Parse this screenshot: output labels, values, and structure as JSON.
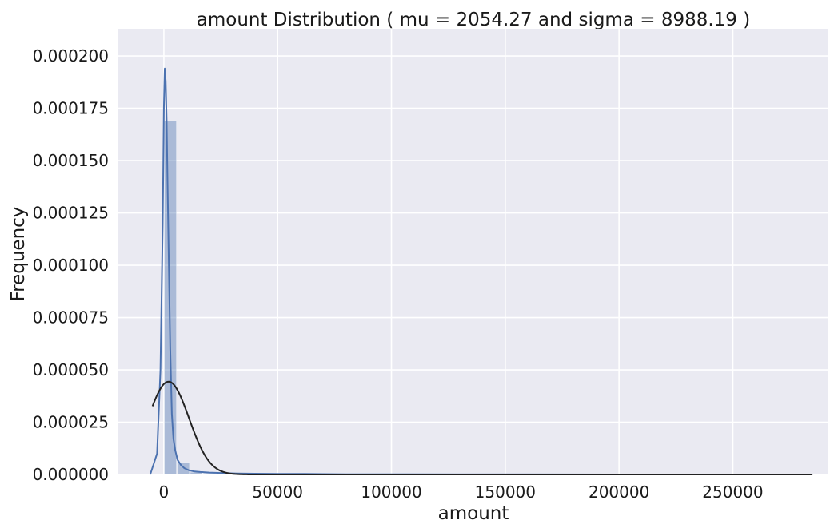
{
  "chart_data": {
    "type": "bar",
    "title": "amount Distribution ( mu = 2054.27 and sigma = 8988.19 )",
    "xlabel": "amount",
    "ylabel": "Frequency",
    "xlim": [
      -20000,
      292000
    ],
    "ylim": [
      0,
      0.000213
    ],
    "x_ticks": [
      0,
      50000,
      100000,
      150000,
      200000,
      250000
    ],
    "x_tick_labels": [
      "0",
      "50000",
      "100000",
      "150000",
      "200000",
      "250000"
    ],
    "y_ticks": [
      0,
      2.5e-05,
      5e-05,
      7.5e-05,
      0.0001,
      0.000125,
      0.00015,
      0.000175,
      0.0002
    ],
    "y_tick_labels": [
      "0.000000",
      "0.000025",
      "0.000050",
      "0.000075",
      "0.000100",
      "0.000125",
      "0.000150",
      "0.000175",
      "0.000200"
    ],
    "grid": true,
    "background": "#eaeaf2",
    "grid_color": "#ffffff",
    "bar_color": "#4c72b0",
    "bar_opacity": 0.4,
    "kde_color": "#4c72b0",
    "normal_fit_color": "#222222",
    "bin_edges": [
      0,
      5700,
      11400,
      17100,
      22800,
      28500,
      34200,
      39900,
      45600,
      51300,
      57000,
      62700,
      68400,
      74100,
      79800,
      85500,
      91200,
      96900,
      102600,
      108300,
      114000,
      119700,
      125400,
      131100,
      136800,
      142500,
      148200,
      153900,
      159600,
      165300,
      171000,
      176700,
      182400,
      188100,
      193800,
      199500,
      205200,
      210900,
      216600,
      222300,
      228000,
      233700,
      239400,
      245100,
      250800,
      256500,
      262200,
      267900,
      273600,
      279300,
      285000
    ],
    "bins": [
      0.000169,
      5.8e-06,
      1.1e-06,
      6e-07,
      4e-07,
      3e-07,
      3e-07,
      2e-07,
      2e-07,
      2e-07,
      3e-07,
      2e-07,
      1e-07,
      0,
      0,
      0,
      0,
      0,
      0,
      0,
      0,
      0,
      0,
      0,
      0,
      0,
      0,
      0,
      0,
      0,
      0,
      0,
      0,
      0,
      0,
      0,
      0,
      0,
      0,
      0,
      0,
      0,
      0,
      0,
      0,
      0,
      0,
      0,
      0,
      1e-07
    ],
    "series": [
      {
        "name": "",
        "kind": "kde",
        "x": [
          -6000,
          -3000,
          -1500,
          -500,
          0,
          400,
          800,
          1200,
          1600,
          2200,
          2800,
          3500,
          4200,
          5000,
          6000,
          7500,
          9000,
          11000,
          13000,
          16000,
          20000,
          25000,
          32000,
          40000,
          50000,
          60000,
          70000,
          80000,
          100000,
          130000,
          160000,
          200000,
          240000,
          285000
        ],
        "values": [
          0,
          1e-05,
          5e-05,
          0.00012,
          0.000175,
          0.000194,
          0.000188,
          0.00017,
          0.00014,
          0.0001,
          6e-05,
          2.9e-05,
          1.7e-05,
          1.15e-05,
          7e-06,
          4.5e-06,
          3e-06,
          2e-06,
          1.5e-06,
          1.2e-06,
          9e-07,
          7e-07,
          5e-07,
          4e-07,
          3e-07,
          3e-07,
          2e-07,
          1e-07,
          1e-07,
          5e-08,
          3e-08,
          2e-08,
          1e-08,
          1e-08
        ]
      },
      {
        "name": "",
        "kind": "normal_fit",
        "mu": 2054.27,
        "sigma": 8988.19,
        "x_range": [
          -5000,
          285000
        ]
      }
    ]
  }
}
